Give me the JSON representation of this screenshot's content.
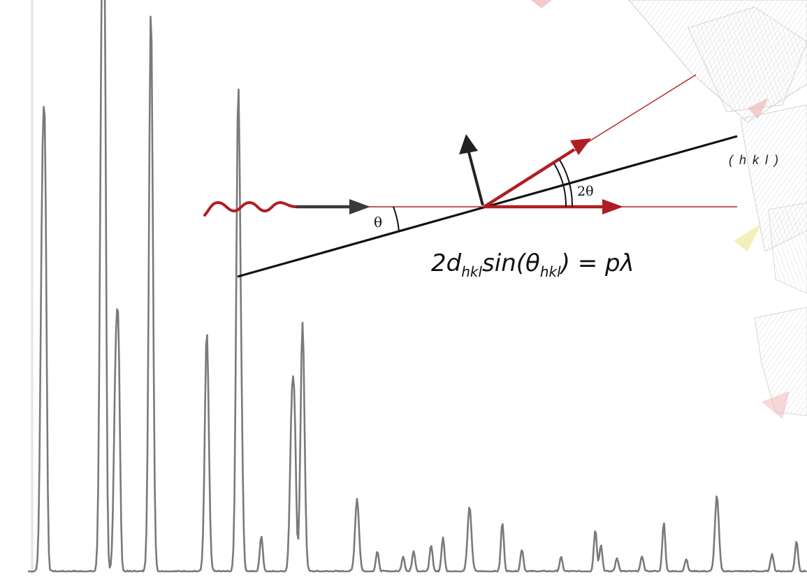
{
  "labels": {
    "theta": "θ",
    "two_theta": "2θ",
    "plane": "( h k l )"
  },
  "equation": {
    "lead": "2d",
    "sub1": "hkl",
    "mid": "sin(θ",
    "sub2": "hkl",
    "tail": ") = pλ"
  },
  "colors": {
    "pattern": "#7a7a7a",
    "beam": "#b01e23",
    "plane_line": "#111111",
    "normal_arrow": "#222222",
    "input_arrow": "#3a3a3a"
  },
  "icons": {
    "wave": "incoming-xray-wave-icon",
    "normal": "plane-normal-arrow-icon"
  }
}
